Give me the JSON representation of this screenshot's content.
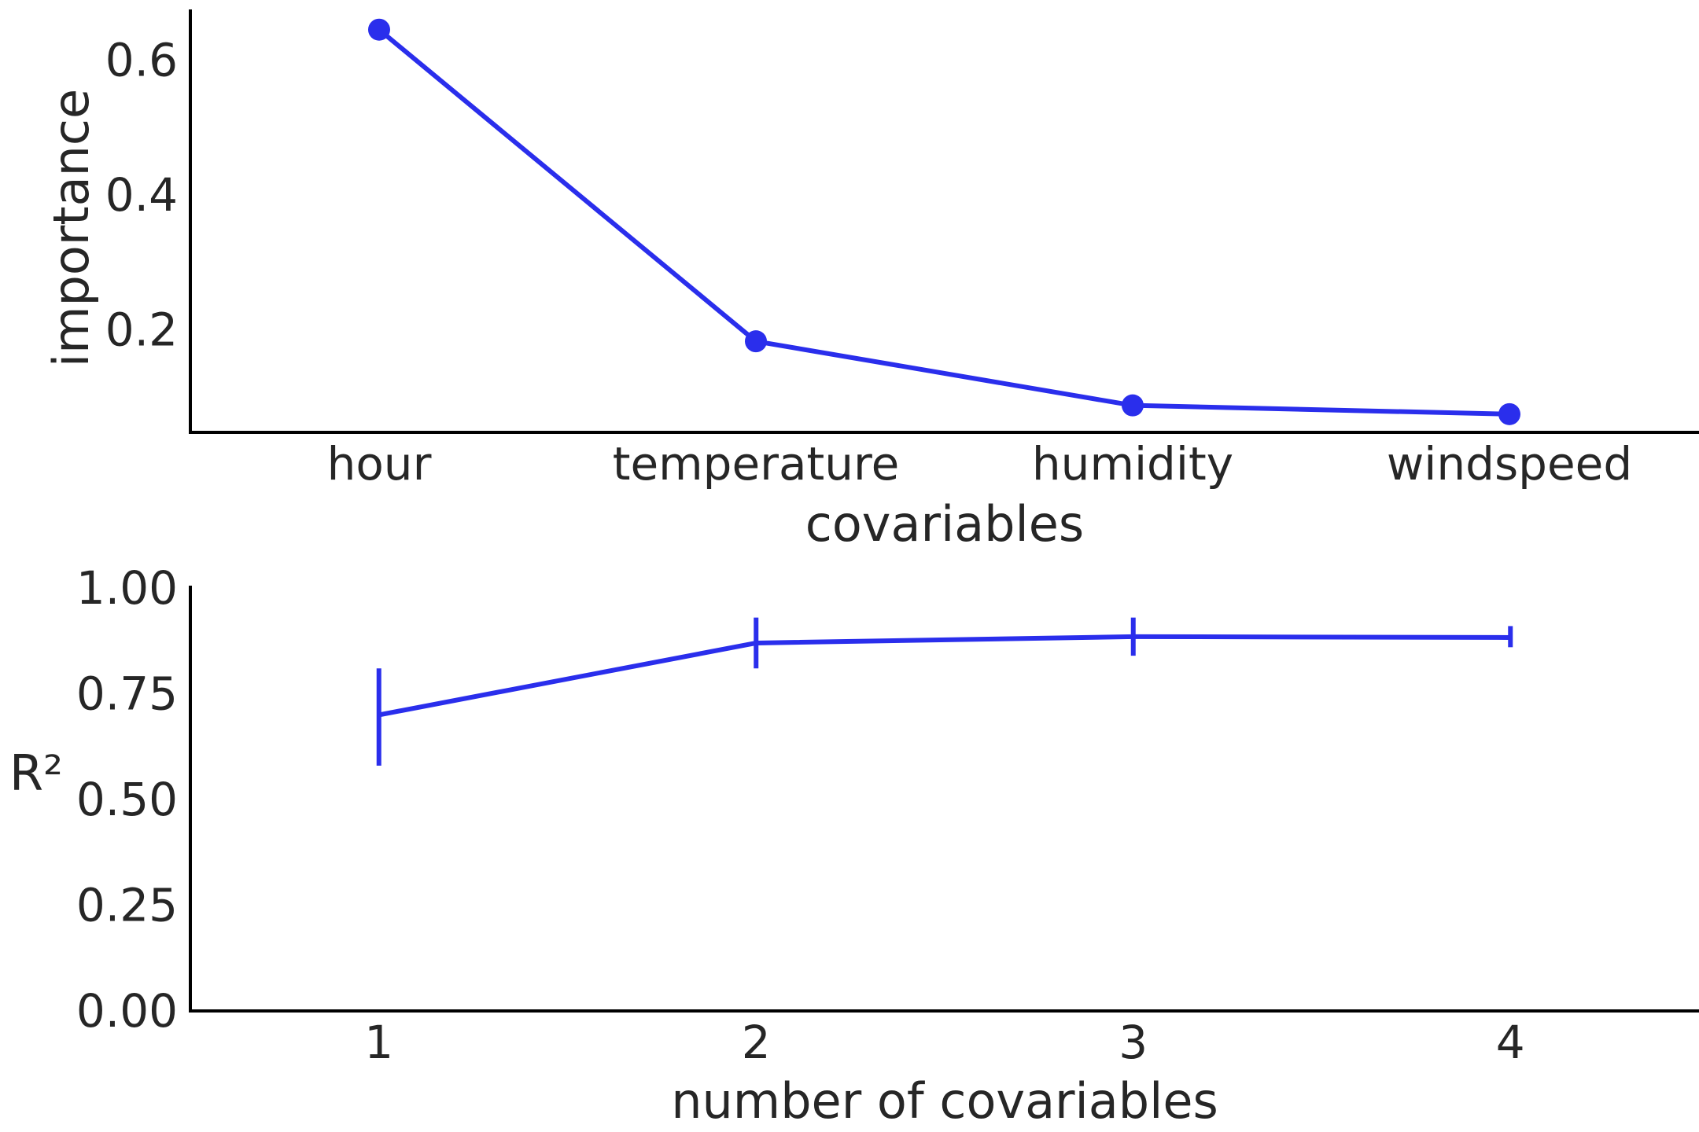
{
  "chart_data": [
    {
      "type": "line",
      "categories": [
        "hour",
        "temperature",
        "humidity",
        "windspeed"
      ],
      "series": [
        {
          "values": [
            0.645,
            0.183,
            0.088,
            0.075
          ],
          "color": "#2a2eec",
          "marker": "circle"
        }
      ],
      "xlabel": "covariables",
      "ylabel": "importance",
      "yticks": [
        0.2,
        0.4,
        0.6
      ],
      "ytick_labels": [
        "0.2",
        "0.4",
        "0.6"
      ],
      "ylim": [
        0.048,
        0.675
      ],
      "grid": false
    },
    {
      "type": "line",
      "x": [
        1,
        2,
        3,
        4
      ],
      "xtick_labels": [
        "1",
        "2",
        "3",
        "4"
      ],
      "series": [
        {
          "values": [
            0.7,
            0.87,
            0.885,
            0.883
          ],
          "error_low": [
            0.58,
            0.81,
            0.84,
            0.86
          ],
          "error_high": [
            0.81,
            0.93,
            0.93,
            0.91
          ],
          "color": "#2a2eec",
          "marker": "error-bar"
        }
      ],
      "xlabel": "number of covariables",
      "ylabel": "R²",
      "yticks": [
        0.0,
        0.25,
        0.5,
        0.75,
        1.0
      ],
      "ytick_labels": [
        "0.00",
        "0.25",
        "0.50",
        "0.75",
        "1.00"
      ],
      "ylim": [
        0,
        1
      ],
      "xlim": [
        0.5,
        4.5
      ],
      "grid": false
    }
  ]
}
